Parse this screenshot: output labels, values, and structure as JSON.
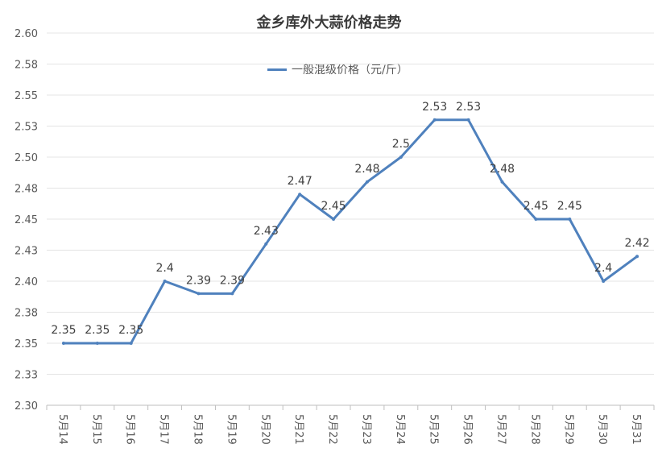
{
  "chart_data": {
    "type": "line",
    "title": "金乡库外大蒜价格走势",
    "categories": [
      "5月14",
      "5月15",
      "5月16",
      "5月17",
      "5月18",
      "5月19",
      "5月20",
      "5月21",
      "5月22",
      "5月23",
      "5月24",
      "5月25",
      "5月26",
      "5月27",
      "5月28",
      "5月29",
      "5月30",
      "5月31"
    ],
    "series": [
      {
        "name": "一般混级价格（元/斤）",
        "values": [
          2.35,
          2.35,
          2.35,
          2.4,
          2.39,
          2.39,
          2.43,
          2.47,
          2.45,
          2.48,
          2.5,
          2.53,
          2.53,
          2.48,
          2.45,
          2.45,
          2.4,
          2.42
        ],
        "data_labels": [
          "2.35",
          "2.35",
          "2.35",
          "2.4",
          "2.39",
          "2.39",
          "2.43",
          "2.47",
          "2.45",
          "2.48",
          "2.5",
          "2.53",
          "2.53",
          "2.48",
          "2.45",
          "2.45",
          "2.4",
          "2.42"
        ],
        "color": "#4f81bd"
      }
    ],
    "yticks": [
      "2.30",
      "2.33",
      "2.35",
      "2.38",
      "2.40",
      "2.43",
      "2.45",
      "2.48",
      "2.50",
      "2.53",
      "2.55",
      "2.58",
      "2.60"
    ],
    "ylim": [
      2.3,
      2.6
    ],
    "grid": true,
    "legend_position": "top"
  }
}
